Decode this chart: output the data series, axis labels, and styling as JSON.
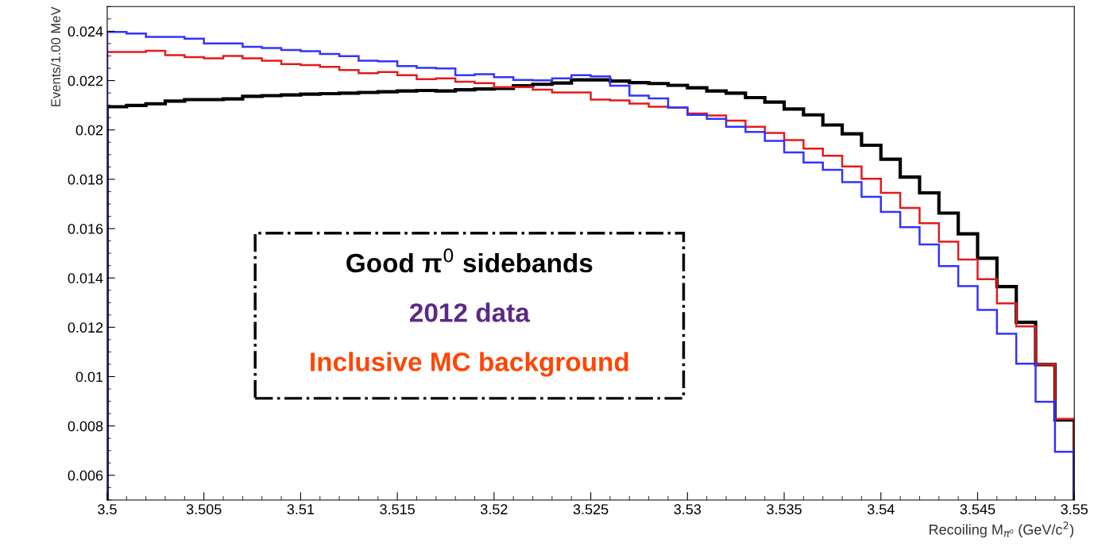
{
  "chart_data": {
    "type": "histogram",
    "xlabel": "Recoiling M$_{π⁰}$ (GeV/c$^{2}$)",
    "ylabel": "Events/1.00 MeV",
    "bins": [
      3.5,
      3.501,
      3.502,
      3.503,
      3.504,
      3.505,
      3.506,
      3.507,
      3.508,
      3.509,
      3.51,
      3.511,
      3.512,
      3.513,
      3.514,
      3.515,
      3.516,
      3.517,
      3.518,
      3.519,
      3.52,
      3.521,
      3.522,
      3.523,
      3.524,
      3.525,
      3.526,
      3.527,
      3.528,
      3.529,
      3.53,
      3.531,
      3.532,
      3.533,
      3.534,
      3.535,
      3.536,
      3.537,
      3.538,
      3.539,
      3.54,
      3.541,
      3.542,
      3.543,
      3.544,
      3.545,
      3.546,
      3.547,
      3.548,
      3.549,
      3.55
    ],
    "series": [
      {
        "color": "#000000",
        "values": [
          0.02094,
          0.02099,
          0.02106,
          0.02117,
          0.02123,
          0.02123,
          0.02126,
          0.02136,
          0.02139,
          0.02142,
          0.02145,
          0.02147,
          0.02149,
          0.02152,
          0.02155,
          0.02158,
          0.0216,
          0.02158,
          0.02163,
          0.02166,
          0.02168,
          0.02179,
          0.02185,
          0.0219,
          0.02203,
          0.02203,
          0.02198,
          0.02192,
          0.02188,
          0.02181,
          0.02171,
          0.02158,
          0.02149,
          0.02131,
          0.02113,
          0.02085,
          0.02061,
          0.0202,
          0.01984,
          0.01938,
          0.01881,
          0.01809,
          0.01745,
          0.01663,
          0.01579,
          0.0148,
          0.01365,
          0.0122,
          0.01049,
          0.00824
        ]
      },
      {
        "color": "#e41a1c",
        "values": [
          0.02316,
          0.02316,
          0.02321,
          0.02303,
          0.02295,
          0.0229,
          0.023,
          0.0229,
          0.02281,
          0.02267,
          0.02263,
          0.02256,
          0.02243,
          0.0223,
          0.02235,
          0.02222,
          0.02206,
          0.02209,
          0.02195,
          0.0219,
          0.02174,
          0.02174,
          0.02163,
          0.02152,
          0.02152,
          0.02123,
          0.0212,
          0.02107,
          0.02094,
          0.02091,
          0.02067,
          0.02059,
          0.02038,
          0.02013,
          0.01988,
          0.01959,
          0.01924,
          0.01895,
          0.01852,
          0.01802,
          0.01745,
          0.01684,
          0.01622,
          0.01547,
          0.01475,
          0.01395,
          0.01297,
          0.01204,
          0.01049,
          0.00829
        ]
      },
      {
        "color": "#3333ff",
        "values": [
          0.02397,
          0.02391,
          0.02377,
          0.02377,
          0.0237,
          0.02351,
          0.02351,
          0.02337,
          0.02332,
          0.02324,
          0.02319,
          0.02308,
          0.02299,
          0.02281,
          0.02278,
          0.02259,
          0.02252,
          0.02249,
          0.02222,
          0.02226,
          0.02214,
          0.02203,
          0.02201,
          0.02209,
          0.02222,
          0.02217,
          0.02179,
          0.02139,
          0.02128,
          0.02091,
          0.02061,
          0.02045,
          0.02013,
          0.01992,
          0.01956,
          0.01909,
          0.01868,
          0.01838,
          0.01788,
          0.01729,
          0.01668,
          0.01606,
          0.01536,
          0.01448,
          0.01367,
          0.0127,
          0.01174,
          0.01052,
          0.00898,
          0.00695
        ]
      }
    ],
    "xlim": [
      3.5,
      3.55
    ],
    "xticks": [
      3.5,
      3.505,
      3.51,
      3.515,
      3.52,
      3.525,
      3.53,
      3.535,
      3.54,
      3.545,
      3.55
    ],
    "ylim": [
      0.005,
      0.025
    ],
    "yticks": [
      0.006,
      0.008,
      0.01,
      0.012,
      0.014,
      0.016,
      0.018,
      0.02,
      0.022,
      0.024
    ],
    "annotations": [
      "Good π$^{0}$ sidebands",
      "2012 data",
      "Inclusive MC background"
    ],
    "grid": false,
    "legend": false
  }
}
